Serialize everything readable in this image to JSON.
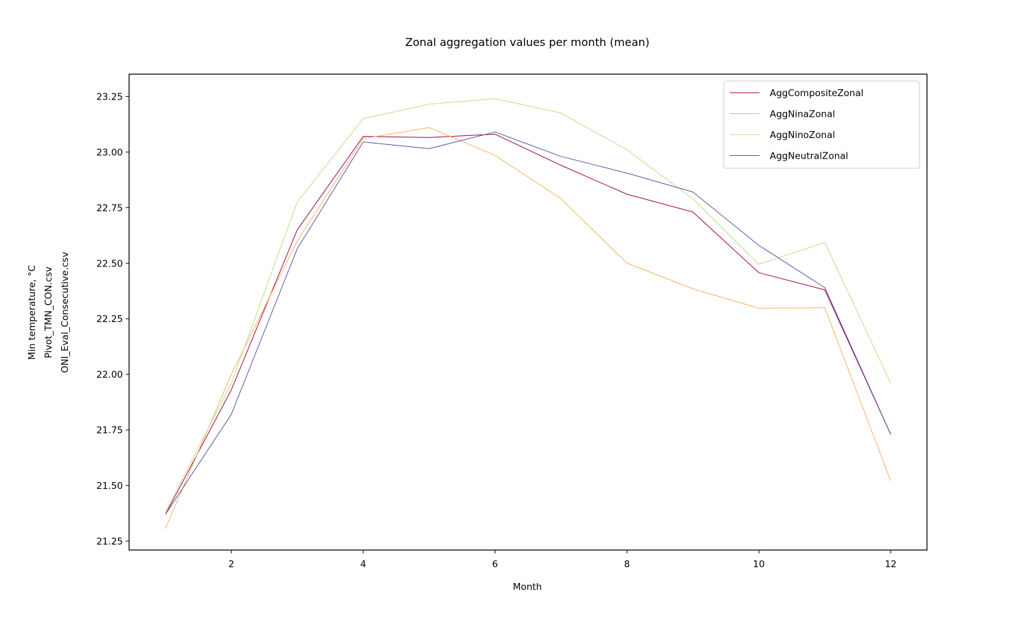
{
  "chart_data": {
    "type": "line",
    "title": "Zonal aggregation values per month (mean)",
    "xlabel": "Month",
    "ylabel": [
      "Min temperature, °C",
      "Pivot_TMN_CON.csv",
      "ONI_Eval_Consecutive.csv"
    ],
    "x": [
      1,
      2,
      3,
      4,
      5,
      6,
      7,
      8,
      9,
      10,
      11,
      12
    ],
    "xlim": [
      0.45,
      12.55
    ],
    "ylim": [
      21.21,
      23.35
    ],
    "xticks": [
      2,
      4,
      6,
      8,
      10,
      12
    ],
    "xtick_labels": [
      "2",
      "4",
      "6",
      "8",
      "10",
      "12"
    ],
    "yticks": [
      21.25,
      21.5,
      21.75,
      22.0,
      22.25,
      22.5,
      22.75,
      23.0,
      23.25
    ],
    "ytick_labels": [
      "21.25",
      "21.50",
      "21.75",
      "22.00",
      "22.25",
      "22.50",
      "22.75",
      "23.00",
      "23.25"
    ],
    "grid": false,
    "legend_position": "top-right",
    "series": [
      {
        "name": "AggCompositeZonal",
        "color": "#9e0142",
        "values": [
          21.37,
          21.93,
          22.65,
          23.07,
          23.065,
          23.08,
          22.94,
          22.81,
          22.73,
          22.457,
          22.38,
          21.73
        ]
      },
      {
        "name": "AggNinaZonal",
        "color": "#fdae61",
        "values": [
          21.305,
          22.0,
          22.6,
          23.06,
          23.11,
          22.985,
          22.79,
          22.5,
          22.385,
          22.297,
          22.3,
          21.52
        ]
      },
      {
        "name": "AggNinoZonal",
        "color": "#b8e186",
        "values": [
          21.38,
          21.96,
          22.775,
          23.15,
          23.215,
          23.24,
          23.175,
          23.01,
          22.79,
          22.495,
          22.593,
          21.96
        ]
      },
      {
        "name": "AggNeutralZonal",
        "color": "#5e4fa2",
        "values": [
          21.37,
          21.82,
          22.565,
          23.045,
          23.015,
          23.09,
          22.98,
          22.905,
          22.82,
          22.58,
          22.39,
          21.73
        ]
      }
    ]
  }
}
